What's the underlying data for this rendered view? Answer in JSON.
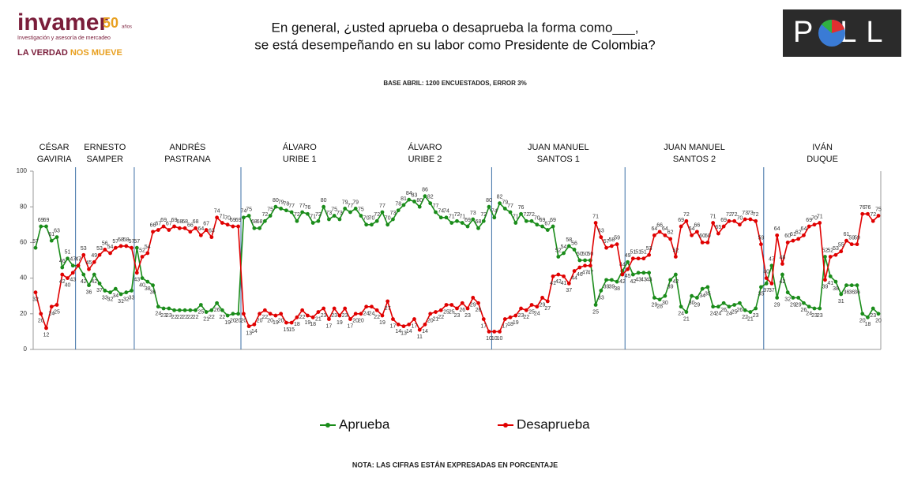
{
  "header": {
    "logo": "invamer",
    "logo_years": "50",
    "logo_years_word": "años",
    "logo_tagline": "Investigación y asesoría de mercadeo",
    "slogan_1": "LA VERDAD",
    "slogan_2": "NOS MUEVE",
    "poll_logo": "P LL"
  },
  "chart_data": {
    "type": "line",
    "title": [
      "En general, ¿usted aprueba o desaprueba la forma como___,",
      "se está desempeñando en su labor como Presidente de Colombia?"
    ],
    "subtitle": "BASE ABRIL: 1200 ENCUESTADOS, ERROR 3%",
    "note": "NOTA: LAS CIFRAS ESTÁN EXPRESADAS EN PORCENTAJE",
    "periods": [
      [
        "CÉSAR",
        "GAVIRIA"
      ],
      [
        "ERNESTO",
        "SAMPER"
      ],
      [
        "ANDRÉS",
        "PASTRANA"
      ],
      [
        "ÁLVARO",
        "URIBE 1"
      ],
      [
        "ÁLVARO",
        "URIBE 2"
      ],
      [
        "JUAN MANUEL",
        "SANTOS 1"
      ],
      [
        "JUAN MANUEL",
        "SANTOS 2"
      ],
      [
        "IVÁN",
        "DUQUE"
      ]
    ],
    "ylim": [
      0,
      100
    ],
    "yticks": [
      0,
      20,
      40,
      60,
      80,
      100
    ],
    "series": [
      {
        "name": "Aprueba",
        "color": "#1a8c1a",
        "values": [
          57,
          69,
          69,
          61,
          63,
          46,
          51,
          47,
          47,
          42,
          36,
          42,
          37,
          33,
          32,
          34,
          31,
          32,
          33,
          57,
          40,
          38,
          36,
          24,
          23,
          23,
          22,
          22,
          22,
          22,
          22,
          25,
          21,
          22,
          26,
          22,
          19,
          20,
          20,
          74,
          75,
          68,
          68,
          72,
          75,
          80,
          79,
          78,
          77,
          72,
          77,
          76,
          71,
          72,
          80,
          73,
          75,
          73,
          79,
          77,
          79,
          75,
          70,
          70,
          72,
          77,
          70,
          73,
          78,
          81,
          84,
          83,
          80,
          86,
          82,
          77,
          74,
          74,
          71,
          72,
          71,
          69,
          73,
          68,
          72,
          80,
          74,
          82,
          79,
          77,
          71,
          76,
          72,
          72,
          70,
          69,
          67,
          69,
          52,
          54,
          58,
          56,
          50,
          50,
          50,
          25,
          33,
          39,
          39,
          38,
          44,
          49,
          42,
          43,
          43,
          43,
          29,
          28,
          30,
          39,
          42,
          24,
          21,
          30,
          29,
          34,
          35,
          24,
          24,
          26,
          24,
          25,
          26,
          22,
          21,
          23,
          35,
          37,
          47,
          29,
          42,
          32,
          29,
          29,
          26,
          24,
          23,
          23,
          52,
          41,
          38,
          31,
          36,
          36,
          36,
          20,
          18,
          23,
          20
        ]
      },
      {
        "name": "Desaprueba",
        "color": "#e00000",
        "values": [
          32,
          20,
          12,
          24,
          25,
          42,
          40,
          43,
          47,
          53,
          45,
          49,
          53,
          56,
          54,
          57,
          58,
          58,
          57,
          43,
          52,
          54,
          66,
          67,
          69,
          67,
          69,
          68,
          68,
          66,
          68,
          64,
          67,
          63,
          74,
          71,
          70,
          69,
          69,
          20,
          13,
          14,
          20,
          22,
          20,
          19,
          20,
          15,
          15,
          18,
          22,
          19,
          18,
          21,
          23,
          17,
          23,
          19,
          23,
          17,
          20,
          20,
          24,
          24,
          22,
          19,
          27,
          17,
          14,
          13,
          14,
          17,
          11,
          14,
          20,
          21,
          22,
          25,
          25,
          23,
          26,
          23,
          29,
          26,
          17,
          10,
          10,
          10,
          17,
          18,
          19,
          23,
          22,
          25,
          24,
          29,
          27,
          41,
          42,
          41,
          37,
          44,
          46,
          47,
          47,
          71,
          63,
          57,
          58,
          59,
          42,
          45,
          51,
          51,
          51,
          53,
          64,
          66,
          64,
          62,
          52,
          69,
          72,
          64,
          66,
          60,
          60,
          71,
          65,
          69,
          72,
          72,
          70,
          73,
          73,
          72,
          59,
          40,
          37,
          64,
          48,
          60,
          61,
          62,
          64,
          69,
          70,
          71,
          39,
          52,
          53,
          55,
          61,
          59,
          59,
          76,
          76,
          72,
          75
        ]
      }
    ]
  }
}
